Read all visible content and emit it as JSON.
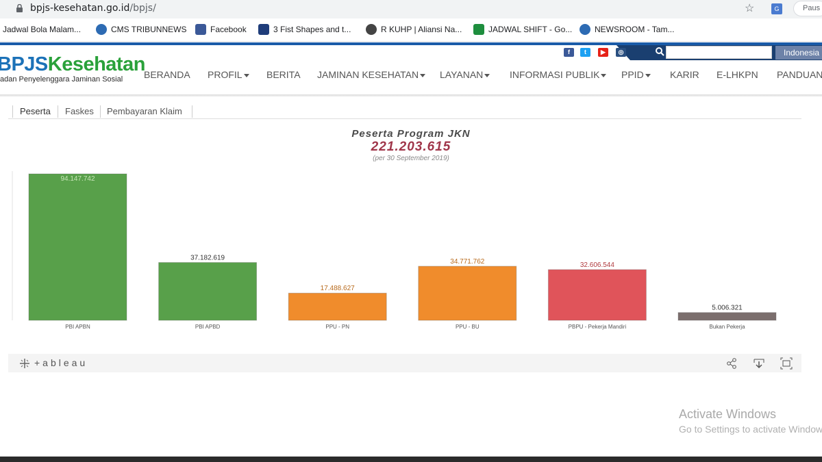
{
  "browser": {
    "url_domain": "bpjs-kesehatan.go.id",
    "url_path": "/bpjs/",
    "pause_label": "Paus"
  },
  "bookmarks": [
    {
      "label": "Jadwal Bola Malam..."
    },
    {
      "label": "CMS TRIBUNNEWS"
    },
    {
      "label": "Facebook"
    },
    {
      "label": "3 Fist Shapes and t..."
    },
    {
      "label": "R KUHP | Aliansi Na..."
    },
    {
      "label": "JADWAL SHIFT - Go..."
    },
    {
      "label": "NEWSROOM - Tam..."
    }
  ],
  "header": {
    "logo_bpjs": "BPJS",
    "logo_kes": "Kesehatan",
    "logo_sub": "adan Penyelenggara Jaminan Sosial",
    "search_placeholder": "",
    "language": "Indonesia",
    "nav": [
      {
        "label": "BERANDA",
        "dropdown": false
      },
      {
        "label": "PROFIL",
        "dropdown": true
      },
      {
        "label": "BERITA",
        "dropdown": false
      },
      {
        "label": "JAMINAN KESEHATAN",
        "dropdown": true
      },
      {
        "label": "LAYANAN",
        "dropdown": true
      },
      {
        "label": "INFORMASI PUBLIK",
        "dropdown": true
      },
      {
        "label": "PPID",
        "dropdown": true
      },
      {
        "label": "KARIR",
        "dropdown": false
      },
      {
        "label": "E-LHKPN",
        "dropdown": false
      },
      {
        "label": "PANDUAN",
        "dropdown": false
      }
    ]
  },
  "tabs": [
    {
      "label": "Peserta",
      "active": true
    },
    {
      "label": "Faskes",
      "active": false
    },
    {
      "label": "Pembayaran Klaim",
      "active": false
    }
  ],
  "chart_data": {
    "type": "bar",
    "title": "Peserta Program JKN",
    "total": "221.203.615",
    "subtitle": "(per 30 September 2019)",
    "categories": [
      "PBI APBN",
      "PBI APBD",
      "PPU - PN",
      "PPU - BU",
      "PBPU - Pekerja Mandiri",
      "Bukan Pekerja"
    ],
    "values": [
      94147742,
      37182619,
      17488627,
      34771762,
      32606544,
      5006321
    ],
    "value_labels": [
      "94.147.742",
      "37.182.619",
      "17.488.627",
      "34.771.762",
      "32.606.544",
      "5.006.321"
    ],
    "colors": [
      "#58a04a",
      "#58a04a",
      "#f08c2c",
      "#f08c2c",
      "#e0545a",
      "#7b6e6d"
    ],
    "label_colors": [
      "#c8e6b8",
      "#333333",
      "#b86a1c",
      "#b86a1c",
      "#b03a3e",
      "#333333"
    ],
    "xlabel": "",
    "ylabel": ""
  },
  "tableau": {
    "logo": "+ableau"
  },
  "watermark": {
    "line1": "Activate Windows",
    "line2": "Go to Settings to activate Windows."
  }
}
